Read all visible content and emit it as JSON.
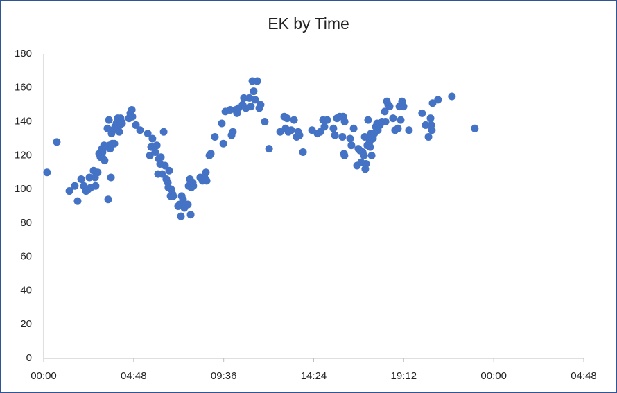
{
  "chart_data": {
    "type": "scatter",
    "title": "EK by Time",
    "color": "#4472c4",
    "x": [
      0.18,
      0.7,
      1.37,
      1.66,
      1.81,
      2.0,
      2.14,
      2.26,
      2.37,
      2.44,
      2.51,
      2.66,
      2.74,
      2.77,
      2.88,
      2.96,
      3.03,
      3.11,
      3.14,
      3.18,
      3.22,
      3.25,
      3.33,
      3.4,
      3.44,
      3.48,
      3.51,
      3.55,
      3.59,
      3.62,
      3.66,
      3.7,
      3.77,
      3.81,
      3.88,
      3.92,
      3.95,
      4.03,
      4.07,
      4.1,
      4.14,
      4.18,
      4.55,
      4.62,
      4.7,
      4.73,
      4.92,
      5.14,
      5.55,
      5.66,
      5.73,
      5.8,
      5.95,
      6.03,
      6.1,
      6.14,
      6.21,
      6.25,
      6.32,
      6.4,
      6.47,
      6.54,
      6.62,
      6.65,
      6.69,
      6.77,
      6.8,
      6.88,
      6.91,
      7.17,
      7.25,
      7.32,
      7.36,
      7.43,
      7.5,
      7.58,
      7.69,
      7.73,
      7.8,
      7.84,
      7.87,
      7.95,
      7.98,
      8.35,
      8.47,
      8.58,
      8.65,
      8.69,
      8.84,
      8.91,
      9.13,
      9.5,
      9.58,
      9.69,
      9.95,
      10.02,
      10.09,
      10.24,
      10.31,
      10.39,
      10.61,
      10.68,
      10.79,
      10.98,
      11.05,
      11.13,
      11.2,
      11.28,
      11.39,
      11.5,
      11.57,
      11.79,
      12.02,
      12.61,
      12.83,
      12.9,
      12.98,
      13.05,
      13.2,
      13.35,
      13.49,
      13.57,
      13.64,
      13.83,
      14.31,
      14.6,
      14.75,
      14.9,
      14.97,
      15.12,
      15.45,
      15.53,
      15.64,
      15.79,
      15.93,
      15.97,
      16.01,
      16.04,
      16.05,
      16.34,
      16.41,
      16.53,
      16.71,
      16.78,
      16.86,
      16.93,
      17.01,
      17.08,
      17.12,
      17.15,
      17.19,
      17.26,
      17.3,
      17.34,
      17.38,
      17.41,
      17.45,
      17.49,
      17.56,
      17.63,
      17.71,
      17.78,
      17.82,
      17.93,
      18.04,
      18.19,
      18.23,
      18.3,
      18.37,
      18.45,
      18.63,
      18.74,
      18.89,
      18.97,
      19.04,
      19.11,
      19.19,
      19.48,
      20.18,
      20.37,
      20.52,
      20.63,
      20.67,
      20.7,
      20.74,
      21.03,
      21.77,
      22.99
    ],
    "values": [
      110,
      128,
      99,
      102,
      93,
      106,
      102,
      99,
      100,
      107,
      101,
      111,
      107,
      102,
      110,
      121,
      119,
      124,
      122,
      118,
      126,
      117,
      125,
      136,
      94,
      141,
      126,
      124,
      107,
      133,
      127,
      135,
      127,
      137,
      139,
      136,
      142,
      134,
      138,
      142,
      140,
      139,
      142,
      145,
      147,
      143,
      138,
      135,
      133,
      120,
      125,
      130,
      122,
      126,
      109,
      118,
      115,
      119,
      109,
      134,
      114,
      106,
      104,
      101,
      111,
      96,
      100,
      97,
      96,
      90,
      91,
      84,
      96,
      94,
      89,
      91,
      91,
      102,
      106,
      85,
      101,
      104,
      102,
      107,
      105,
      107,
      110,
      105,
      120,
      121,
      131,
      139,
      127,
      146,
      147,
      132,
      134,
      147,
      145,
      148,
      150,
      154,
      148,
      154,
      149,
      164,
      158,
      153,
      164,
      148,
      150,
      140,
      124,
      134,
      143,
      136,
      142,
      134,
      135,
      141,
      131,
      134,
      132,
      122,
      135,
      133,
      134,
      141,
      137,
      141,
      136,
      132,
      142,
      143,
      131,
      143,
      121,
      120,
      140,
      130,
      126,
      136,
      114,
      124,
      123,
      116,
      122,
      120,
      131,
      112,
      115,
      126,
      141,
      131,
      128,
      125,
      133,
      120,
      130,
      133,
      137,
      139,
      135,
      138,
      140,
      146,
      140,
      152,
      150,
      149,
      142,
      135,
      136,
      149,
      141,
      152,
      149,
      135,
      145,
      138,
      131,
      142,
      138,
      135,
      151,
      153,
      155,
      136
    ],
    "xlim": [
      0,
      28.8
    ],
    "xticks": [
      {
        "value": 0,
        "label": "00:00"
      },
      {
        "value": 4.8,
        "label": "04:48"
      },
      {
        "value": 9.6,
        "label": "09:36"
      },
      {
        "value": 14.4,
        "label": "14:24"
      },
      {
        "value": 19.2,
        "label": "19:12"
      },
      {
        "value": 24,
        "label": "00:00"
      },
      {
        "value": 28.8,
        "label": "04:48"
      }
    ],
    "ylim": [
      0,
      180
    ],
    "yticks": [
      0,
      20,
      40,
      60,
      80,
      100,
      120,
      140,
      160,
      180
    ]
  }
}
